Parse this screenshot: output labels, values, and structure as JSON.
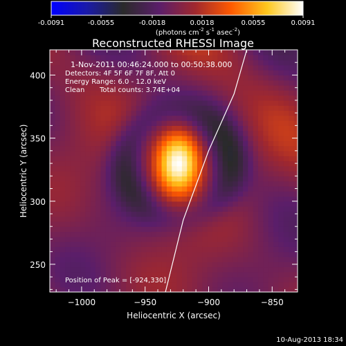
{
  "colorbar": {
    "tick_values": [
      -0.0091,
      -0.0055,
      -0.0018,
      0.0018,
      0.0055,
      0.0091
    ],
    "tick_labels": [
      "-0.0091",
      "-0.0055",
      "-0.0018",
      "0.0018",
      "0.0055",
      "0.0091"
    ],
    "units": "(photons cm",
    "units_exp1": "-2",
    "units_mid": " s",
    "units_exp2": "-1",
    "units_tail": " asec",
    "units_exp3": "-2",
    "units_close": ")",
    "range": [
      -0.0091,
      0.0091
    ],
    "colors": [
      "#0000ff",
      "#1a1aa8",
      "#2a2a2a",
      "#5a1e6a",
      "#a0282e",
      "#ff5a00",
      "#ffc81e",
      "#ffffff"
    ]
  },
  "header": {
    "title": "Reconstructed RHESSI Image",
    "time_range": "1-Nov-2011 00:46:24.000 to 00:50:38.000",
    "detectors": "Detectors: 4F 5F 6F 7F 8F, Att 0",
    "energy": "Energy Range: 6.0 - 12.0 keV",
    "clean_label": "Clean",
    "total_counts": "Total counts: 3.74E+04",
    "peak": "Position of Peak = [-924,330]"
  },
  "footer": {
    "timestamp": "10-Aug-2013 18:34"
  },
  "chart_data": {
    "type": "heatmap",
    "title": "Reconstructed RHESSI Image",
    "xlabel": "Heliocentric X (arcsec)",
    "ylabel": "Heliocentric Y (arcsec)",
    "xlim": [
      -1025,
      -830
    ],
    "ylim": [
      228,
      420
    ],
    "x_ticks": [
      -1000,
      -950,
      -900,
      -850
    ],
    "x_tick_labels": [
      "−1000",
      "−950",
      "−900",
      "−850"
    ],
    "y_ticks": [
      250,
      300,
      350,
      400
    ],
    "y_tick_labels": [
      "250",
      "300",
      "350",
      "400"
    ],
    "grid": false,
    "peak": {
      "x": -924,
      "y": 330,
      "value": 0.0091
    },
    "limb_curve": [
      [
        -934,
        228
      ],
      [
        -920,
        285
      ],
      [
        -900,
        340
      ],
      [
        -880,
        385
      ],
      [
        -870,
        420
      ]
    ],
    "pixel_size_arcsec": 4
  }
}
